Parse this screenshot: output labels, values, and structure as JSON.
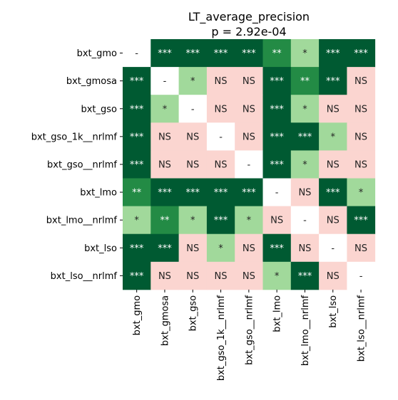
{
  "chart_data": {
    "type": "heatmap",
    "title": "LT_average_precision",
    "subtitle": "p = 2.92e-04",
    "rows": [
      "bxt_gmo",
      "bxt_gmosa",
      "bxt_gso",
      "bxt_gso_1k__nrlmf",
      "bxt_gso__nrlmf",
      "bxt_lmo",
      "bxt_lmo__nrlmf",
      "bxt_lso",
      "bxt_lso__nrlmf"
    ],
    "columns": [
      "bxt_gmo",
      "bxt_gmosa",
      "bxt_gso",
      "bxt_gso_1k__nrlmf",
      "bxt_gso__nrlmf",
      "bxt_lmo",
      "bxt_lmo__nrlmf",
      "bxt_lso",
      "bxt_lso__nrlmf"
    ],
    "cells": [
      [
        "-",
        "***",
        "***",
        "***",
        "***",
        "**",
        "*",
        "***",
        "***"
      ],
      [
        "***",
        "-",
        "*",
        "NS",
        "NS",
        "***",
        "**",
        "***",
        "NS"
      ],
      [
        "***",
        "*",
        "-",
        "NS",
        "NS",
        "***",
        "*",
        "NS",
        "NS"
      ],
      [
        "***",
        "NS",
        "NS",
        "-",
        "NS",
        "***",
        "***",
        "*",
        "NS"
      ],
      [
        "***",
        "NS",
        "NS",
        "NS",
        "-",
        "***",
        "*",
        "NS",
        "NS"
      ],
      [
        "**",
        "***",
        "***",
        "***",
        "***",
        "-",
        "NS",
        "***",
        "*"
      ],
      [
        "*",
        "**",
        "*",
        "***",
        "*",
        "NS",
        "-",
        "NS",
        "***"
      ],
      [
        "***",
        "***",
        "NS",
        "*",
        "NS",
        "***",
        "NS",
        "-",
        "NS"
      ],
      [
        "***",
        "NS",
        "NS",
        "NS",
        "NS",
        "*",
        "***",
        "NS",
        "-"
      ]
    ],
    "colors": {
      "***": "#005a32",
      "**": "#238b45",
      "*": "#a1d99b",
      "NS": "#fbd5d0",
      "-": "#ffffff"
    },
    "text_colors": {
      "***": "#ffffff",
      "**": "#ffffff",
      "*": "#222222",
      "NS": "#222222",
      "-": "#222222"
    }
  }
}
